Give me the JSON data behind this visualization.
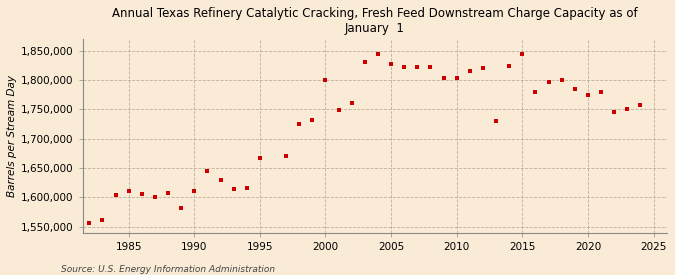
{
  "title": "Annual Texas Refinery Catalytic Cracking, Fresh Feed Downstream Charge Capacity as of\nJanuary  1",
  "ylabel": "Barrels per Stream Day",
  "source": "Source: U.S. Energy Information Administration",
  "background_color": "#faebd7",
  "marker_color": "#cc0000",
  "years": [
    1982,
    1983,
    1984,
    1985,
    1986,
    1987,
    1988,
    1989,
    1990,
    1991,
    1992,
    1993,
    1994,
    1995,
    1997,
    1998,
    1999,
    2000,
    2001,
    2002,
    2003,
    2004,
    2005,
    2006,
    2007,
    2008,
    2009,
    2010,
    2011,
    2012,
    2013,
    2014,
    2015,
    2016,
    2017,
    2018,
    2019,
    2020,
    2021,
    2022,
    2023,
    2024
  ],
  "values": [
    1557000,
    1562000,
    1604000,
    1611000,
    1605000,
    1601000,
    1608000,
    1582000,
    1611000,
    1645000,
    1630000,
    1614000,
    1616000,
    1667000,
    1670000,
    1725000,
    1731000,
    1800000,
    1748000,
    1760000,
    1830000,
    1845000,
    1827000,
    1822000,
    1822000,
    1822000,
    1803000,
    1803000,
    1815000,
    1820000,
    1730000,
    1824000,
    1844000,
    1780000,
    1797000,
    1800000,
    1785000,
    1775000,
    1780000,
    1745000,
    1750000,
    1757000
  ],
  "ylim": [
    1540000,
    1870000
  ],
  "yticks": [
    1550000,
    1600000,
    1650000,
    1700000,
    1750000,
    1800000,
    1850000
  ],
  "xlim": [
    1981.5,
    2026
  ],
  "xticks": [
    1985,
    1990,
    1995,
    2000,
    2005,
    2010,
    2015,
    2020,
    2025
  ]
}
